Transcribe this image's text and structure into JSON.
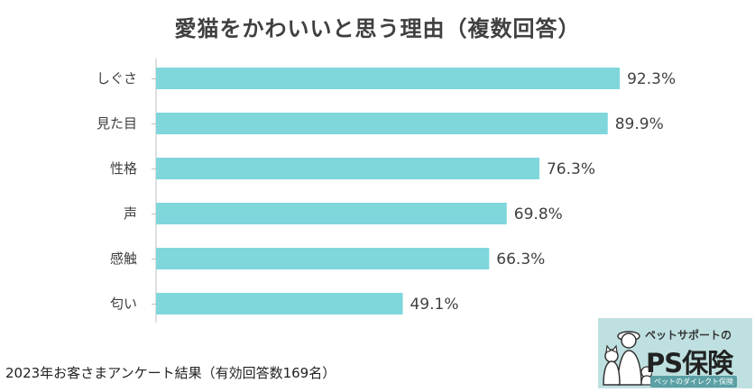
{
  "chart_data": {
    "type": "bar",
    "orientation": "horizontal",
    "title": "愛猫をかわいいと思う理由（複数回答）",
    "categories": [
      "しぐさ",
      "見た目",
      "性格",
      "声",
      "感触",
      "匂い"
    ],
    "values": [
      92.3,
      89.9,
      76.3,
      69.8,
      66.3,
      49.1
    ],
    "value_labels": [
      "92.3%",
      "89.9%",
      "76.3%",
      "69.8%",
      "66.3%",
      "49.1%"
    ],
    "xlim": [
      0,
      100
    ],
    "bar_color": "#7fd7dc",
    "axis_color": "#bfbfbf",
    "grid": false,
    "xlabel": "",
    "ylabel": ""
  },
  "footer": {
    "note": "2023年お客さまアンケート結果（有効回答数169名）"
  },
  "logo": {
    "tagline": "ペットサポートの",
    "name": "PS保険",
    "subtitle": "ペットのダイレクト保険",
    "bg_color": "#bfe0e0"
  }
}
